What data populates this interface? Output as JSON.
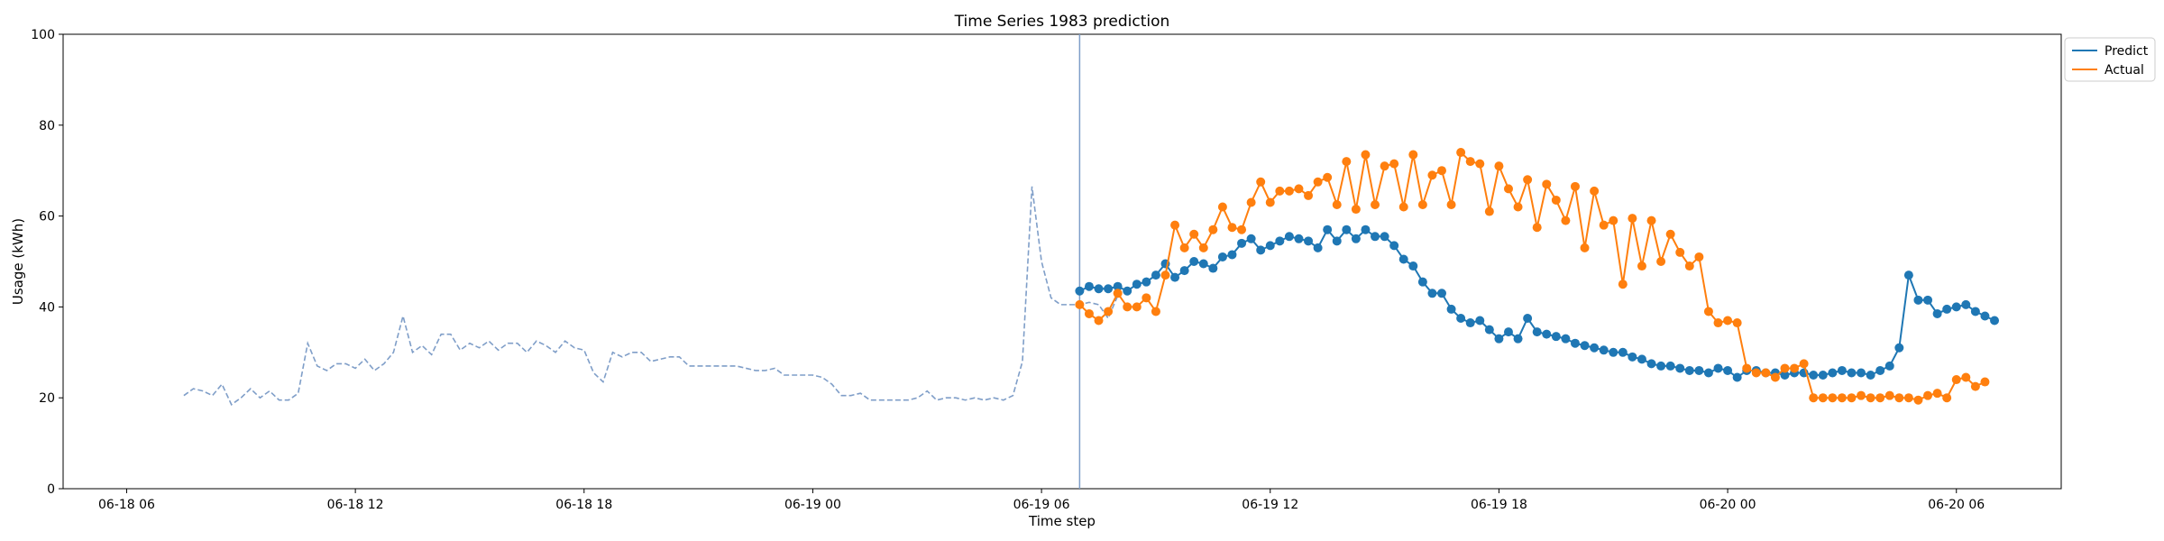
{
  "chart_data": {
    "type": "line",
    "title": "Time Series 1983 prediction",
    "xlabel": "Time step",
    "ylabel": "Usage (kWh)",
    "ylim": [
      0,
      100
    ],
    "yticks": [
      0,
      20,
      40,
      60,
      80,
      100
    ],
    "xlim": [
      "2024-06-18 04:20",
      "2024-06-20 08:45"
    ],
    "xticks": [
      {
        "value": "2024-06-18 06:00",
        "label": "06-18 06"
      },
      {
        "value": "2024-06-18 12:00",
        "label": "06-18 12"
      },
      {
        "value": "2024-06-18 18:00",
        "label": "06-18 18"
      },
      {
        "value": "2024-06-19 00:00",
        "label": "06-19 00"
      },
      {
        "value": "2024-06-19 06:00",
        "label": "06-19 06"
      },
      {
        "value": "2024-06-19 12:00",
        "label": "06-19 12"
      },
      {
        "value": "2024-06-19 18:00",
        "label": "06-19 18"
      },
      {
        "value": "2024-06-20 00:00",
        "label": "06-20 00"
      },
      {
        "value": "2024-06-20 06:00",
        "label": "06-20 06"
      }
    ],
    "grid": false,
    "legend": "outside top-right",
    "series": [
      {
        "name": "",
        "role": "history",
        "style": "dashed",
        "color": "#7f9ec8",
        "start": "2024-06-18 07:30",
        "interval_minutes": 15,
        "values": [
          20.5,
          22,
          21.5,
          20.5,
          23,
          18.5,
          20,
          22,
          20,
          21.5,
          19.5,
          19.5,
          21,
          32,
          27,
          26,
          27.5,
          27.5,
          26.5,
          28.5,
          26,
          27.5,
          30,
          38,
          30,
          31.5,
          29.5,
          34,
          34,
          30.5,
          32,
          31,
          32.5,
          30.5,
          32,
          32,
          30,
          32.5,
          31.5,
          30,
          32.5,
          31,
          30.5,
          25.5,
          23.5,
          30,
          29,
          30,
          30,
          28,
          28.5,
          29,
          29,
          27,
          27,
          27,
          27,
          27,
          27,
          26.5,
          26,
          26,
          26.5,
          25,
          25,
          25,
          25,
          24.5,
          23,
          20.5,
          20.5,
          21,
          19.5,
          19.5,
          19.5,
          19.5,
          19.5,
          20,
          21.5,
          19.5,
          20,
          20,
          19.5,
          20,
          19.5,
          20,
          19.5,
          20.5,
          28,
          66.5,
          50,
          42,
          40.5,
          40.5,
          40.5,
          41,
          40.5,
          37.5,
          42.5
        ]
      },
      {
        "name": "Predict",
        "color": "#1f77b4",
        "start": "2024-06-19 07:00",
        "interval_minutes": 15,
        "values": [
          43.5,
          44.5,
          44,
          44,
          44.5,
          43.5,
          45,
          45.5,
          47,
          49.5,
          46.5,
          48,
          50,
          49.5,
          48.5,
          51,
          51.5,
          54,
          55,
          52.5,
          53.5,
          54.5,
          55.5,
          55,
          54.5,
          53,
          57,
          54.5,
          57,
          55,
          57,
          55.5,
          55.5,
          53.5,
          50.5,
          49,
          45.5,
          43,
          43,
          39.5,
          37.5,
          36.5,
          37,
          35,
          33,
          34.5,
          33,
          37.5,
          34.5,
          34,
          33.5,
          33,
          32,
          31.5,
          31,
          30.5,
          30,
          30,
          29,
          28.5,
          27.5,
          27,
          27,
          26.5,
          26,
          26,
          25.5,
          26.5,
          26,
          24.5,
          26,
          26,
          25.5,
          25.5,
          25,
          25.5,
          25.5,
          25,
          25,
          25.5,
          26,
          25.5,
          25.5,
          25,
          26,
          27,
          31,
          47,
          41.5,
          41.5,
          38.5,
          39.5,
          40,
          40.5,
          39,
          38,
          37
        ]
      },
      {
        "name": "Actual",
        "color": "#ff7f0e",
        "start": "2024-06-19 07:00",
        "interval_minutes": 15,
        "values": [
          40.5,
          38.5,
          37,
          39,
          43,
          40,
          40,
          42,
          39,
          47,
          58,
          53,
          56,
          53,
          57,
          62,
          57.5,
          57,
          63,
          67.5,
          63,
          65.5,
          65.5,
          66,
          64.5,
          67.5,
          68.5,
          62.5,
          72,
          61.5,
          73.5,
          62.5,
          71,
          71.5,
          62,
          73.5,
          62.5,
          69,
          70,
          62.5,
          74,
          72,
          71.5,
          61,
          71,
          66,
          62,
          68,
          57.5,
          67,
          63.5,
          59,
          66.5,
          53,
          65.5,
          58,
          59,
          45,
          59.5,
          49,
          59,
          50,
          56,
          52,
          49,
          51,
          39,
          36.5,
          37,
          36.5,
          26.5,
          25.5,
          25.5,
          24.5,
          26.5,
          26.5,
          27.5,
          20,
          20,
          20,
          20,
          20,
          20.5,
          20,
          20,
          20.5,
          20,
          20,
          19.5,
          20.5,
          21,
          20,
          24,
          24.5,
          22.5,
          23.5
        ]
      }
    ],
    "vline": {
      "x": "2024-06-19 07:00",
      "color": "#7f9ec8"
    }
  }
}
